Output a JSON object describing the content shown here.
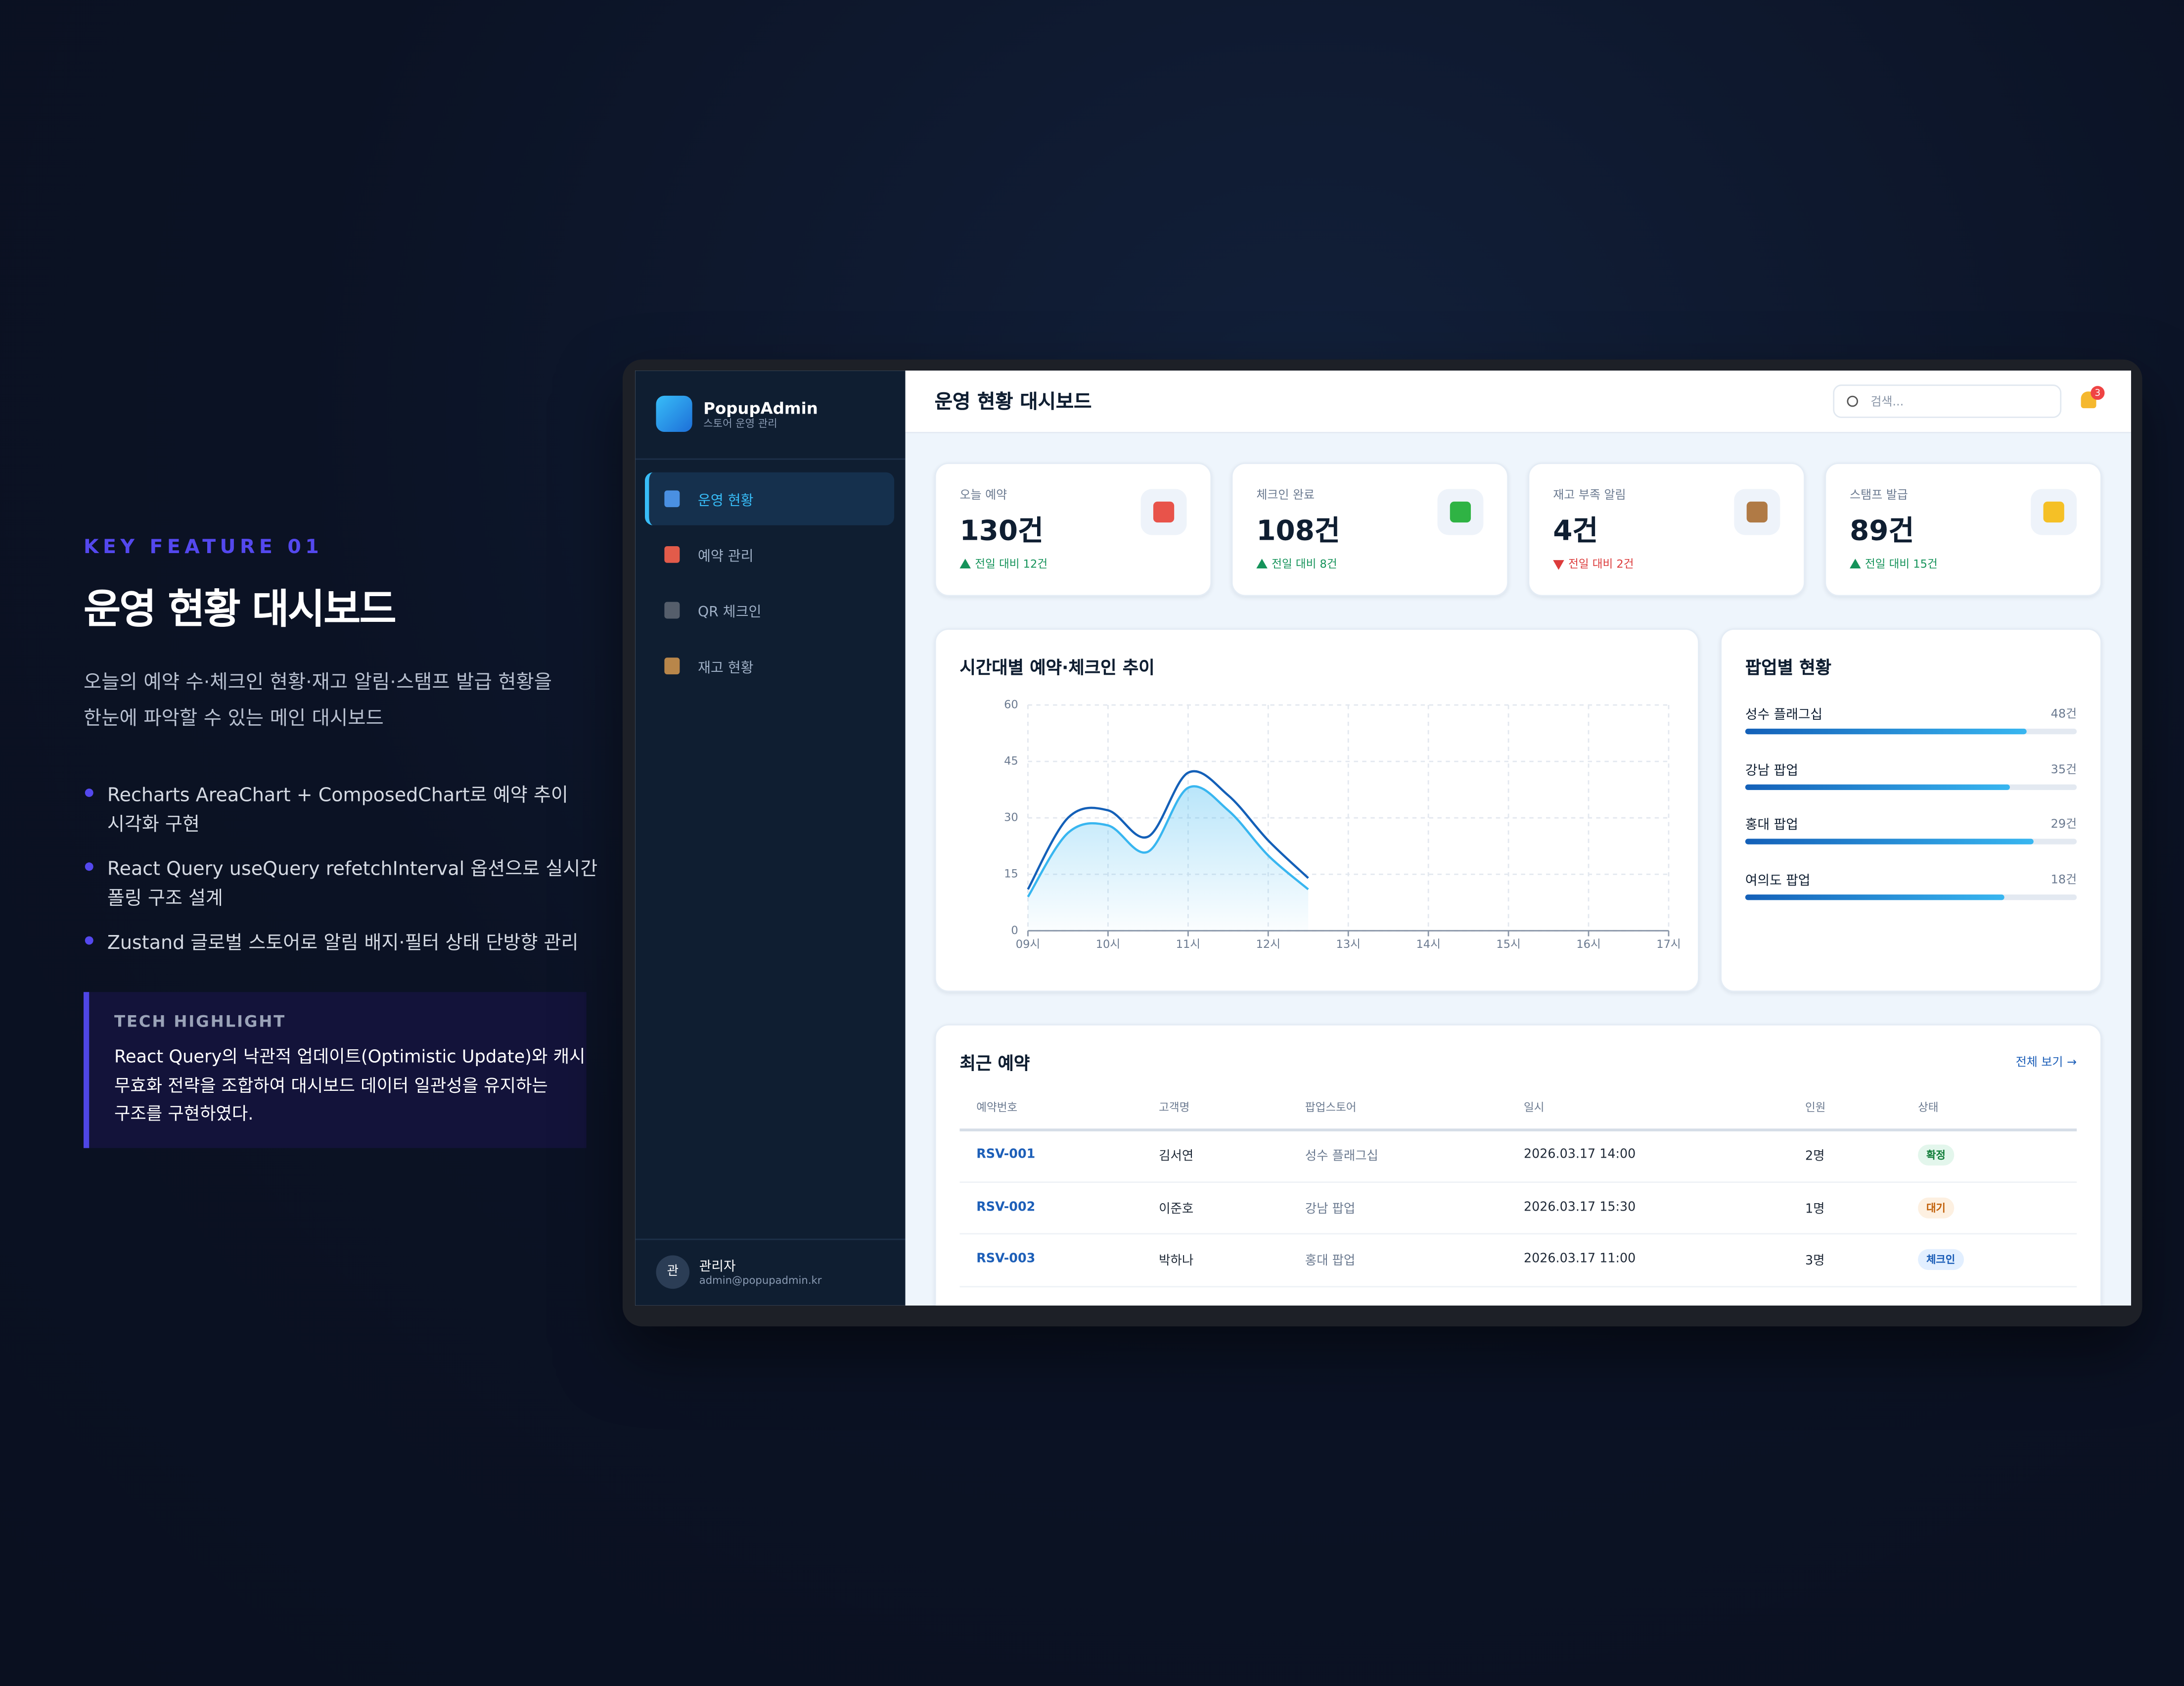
{
  "left": {
    "kicker": "KEY FEATURE 01",
    "title": "운영 현황 대시보드",
    "description": [
      "오늘의 예약 수·체크인 현황·재고 알림·스탬프 발급 현황을",
      "한눈에 파악할 수 있는 메인 대시보드"
    ],
    "bullets": [
      [
        "Recharts AreaChart + ComposedChart로 예약 추이",
        "시각화 구현"
      ],
      [
        "React Query useQuery refetchInterval 옵션으로 실시간",
        "폴링 구조 설계"
      ],
      [
        "Zustand 글로벌 스토어로 알림 배지·필터 상태 단방향 관리"
      ]
    ],
    "highlight": {
      "label": "TECH HIGHLIGHT",
      "lines": [
        "React Query의 낙관적 업데이트(Optimistic Update)와 캐시",
        "무효화 전략을 조합하여 대시보드 데이터 일관성을 유지하는",
        "구조를 구현하였다."
      ]
    }
  },
  "sidebar": {
    "brand": "PopupAdmin",
    "subtitle": "스토어 운영 관리",
    "menu": [
      "운영 현황",
      "예약 관리",
      "QR 체크인",
      "재고 현황"
    ],
    "user": {
      "avatar": "관",
      "name": "관리자",
      "email": "admin@popupadmin.kr"
    }
  },
  "header": {
    "title": "운영 현황 대시보드",
    "search": "검색...",
    "badge": "3"
  },
  "stats": [
    {
      "label": "오늘 예약",
      "value": "130건",
      "delta": "전일 대비 12건",
      "trend": "up"
    },
    {
      "label": "체크인 완료",
      "value": "108건",
      "delta": "전일 대비 8건",
      "trend": "up"
    },
    {
      "label": "재고 부족 알림",
      "value": "4건",
      "delta": "전일 대비 2건",
      "trend": "down"
    },
    {
      "label": "스탬프 발급",
      "value": "89건",
      "delta": "전일 대비 15건",
      "trend": "up"
    }
  ],
  "popup": {
    "title": "팝업별 현황",
    "items": [
      {
        "name": "성수 플래그십",
        "value_label": "48건",
        "progress": 85
      },
      {
        "name": "강남 팝업",
        "value_label": "35건",
        "progress": 80
      },
      {
        "name": "홍대 팝업",
        "value_label": "29건",
        "progress": 87
      },
      {
        "name": "여의도 팝업",
        "value_label": "18건",
        "progress": 78
      }
    ]
  },
  "recent": {
    "title": "최근 예약",
    "link": "전체 보기 →",
    "columns": [
      "예약번호",
      "고객명",
      "팝업스토어",
      "일시",
      "인원",
      "상태"
    ],
    "rows": [
      [
        "RSV-001",
        "김서연",
        "성수 플래그십",
        "2026.03.17 14:00",
        "2명",
        "확정"
      ],
      [
        "RSV-002",
        "이준호",
        "강남 팝업",
        "2026.03.17 15:30",
        "1명",
        "대기"
      ],
      [
        "RSV-003",
        "박하나",
        "홍대 팝업",
        "2026.03.17 11:00",
        "3명",
        "체크인"
      ]
    ],
    "status_colors": [
      [
        "#e3f6ec",
        "#15803d"
      ],
      [
        "#fdf0e1",
        "#c2620c"
      ],
      [
        "#e2efff",
        "#1d5fb8"
      ]
    ]
  },
  "chart_data": {
    "type": "line",
    "title": "시간대별 예약·체크인 추이",
    "categories": [
      "09시",
      null,
      "10시",
      null,
      "11시",
      null,
      "12시",
      null,
      "13시",
      null,
      "14시",
      null,
      "15시",
      null,
      "16시",
      null,
      "17시"
    ],
    "series": [
      {
        "color": "#1460b8",
        "values": [
          11,
          30,
          32,
          25,
          42,
          36,
          24,
          14,
          null,
          null,
          null,
          null,
          null,
          null,
          null,
          null,
          null
        ]
      },
      {
        "color": "#38b6f0",
        "area": true,
        "values": [
          9,
          26,
          28,
          21,
          38,
          32,
          20,
          11,
          null,
          null,
          null,
          null,
          null,
          null,
          null,
          null,
          null
        ]
      }
    ],
    "ylim": [
      0,
      60
    ],
    "yticks": [
      0,
      15,
      30,
      45,
      60
    ],
    "grid": true
  }
}
